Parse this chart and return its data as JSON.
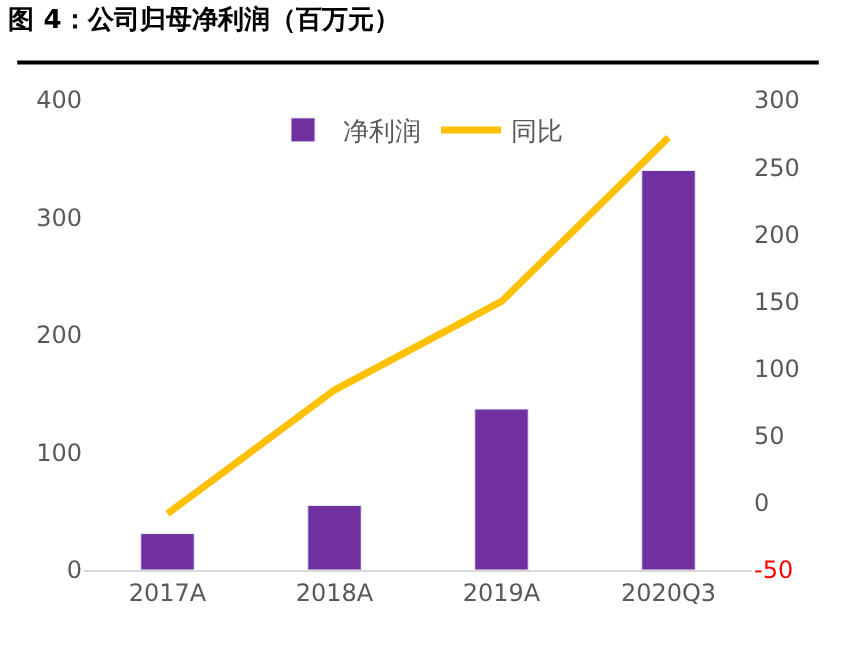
{
  "chart_data": {
    "type": "bar",
    "title": "图 4：公司归母净利润（百万元）",
    "categories": [
      "2017A",
      "2018A",
      "2019A",
      "2020Q3"
    ],
    "series": [
      {
        "name": "净利润",
        "color": "#7030a0",
        "values": [
          31,
          55,
          137,
          340
        ]
      },
      {
        "name": "同比",
        "type": "line",
        "axis": "y2",
        "color": "#ffc000",
        "values": [
          -8,
          84,
          150,
          272
        ]
      }
    ],
    "ylim": [
      0,
      400
    ],
    "yticks": [
      0,
      100,
      200,
      300,
      400
    ],
    "y2lim": [
      -50,
      300
    ],
    "y2ticks": [
      -50,
      0,
      50,
      100,
      150,
      200,
      250,
      300
    ],
    "legend": "top",
    "marker": "none"
  }
}
